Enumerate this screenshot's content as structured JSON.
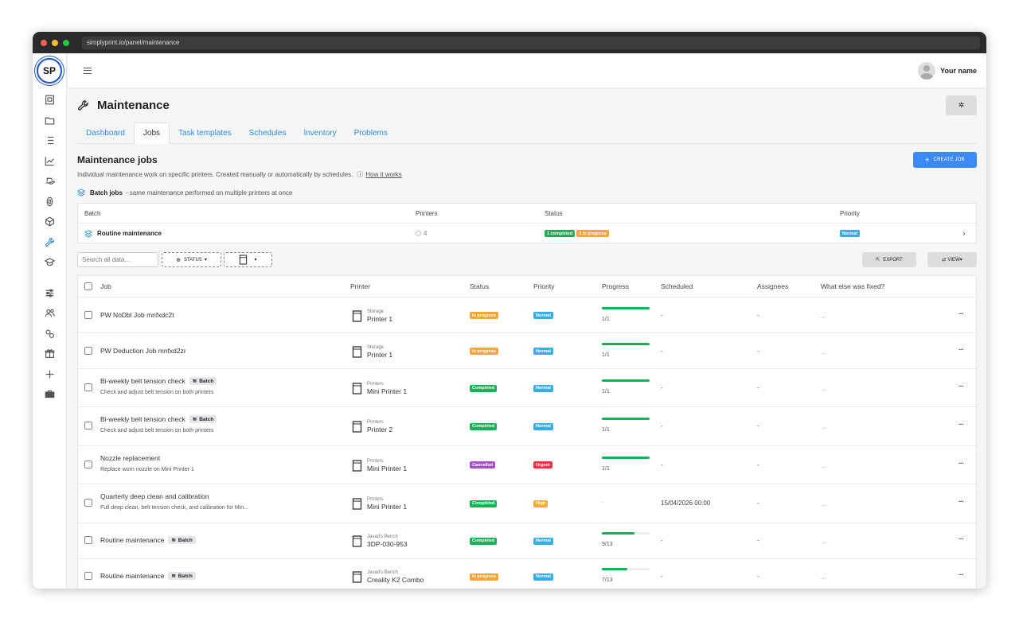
{
  "window": {
    "url": "simplyprint.io/panel/maintenance",
    "dots": [
      "#ff5f57",
      "#febc2e",
      "#28c840"
    ]
  },
  "logo": {
    "text": "SP"
  },
  "sidebar": {
    "icons": [
      "printer-farm-icon",
      "folder-icon",
      "list-icon",
      "chart-icon",
      "hand-icon",
      "spool-icon",
      "cube-icon",
      "wrench-icon",
      "graduation-icon",
      "sliders-icon",
      "users-icon",
      "gears-icon",
      "gift-icon",
      "plus-icon",
      "toolbox-icon"
    ],
    "active": "wrench-icon"
  },
  "topbar": {
    "user_name": "Your name"
  },
  "page": {
    "title": "Maintenance",
    "settings_icon": "gear-icon"
  },
  "tabs": [
    {
      "label": "Dashboard",
      "active": false
    },
    {
      "label": "Jobs",
      "active": true
    },
    {
      "label": "Task templates",
      "active": false
    },
    {
      "label": "Schedules",
      "active": false
    },
    {
      "label": "Inventory",
      "active": false
    },
    {
      "label": "Problems",
      "active": false
    }
  ],
  "section": {
    "title": "Maintenance jobs",
    "description": "Individual maintenance work on specific printers. Created manually or automatically by schedules.",
    "how_it_works": "How it works",
    "create_button": "CREATE JOB"
  },
  "batch": {
    "heading": "Batch jobs",
    "subheading": "- same maintenance performed on multiple printers at once",
    "columns": [
      "Batch",
      "Printers",
      "Status",
      "Priority"
    ],
    "row": {
      "name": "Routine maintenance",
      "printers": "4",
      "status_completed": "1 completed",
      "status_in_progress": "3 in progress",
      "priority": "Normal"
    }
  },
  "filters": {
    "search_placeholder": "Search all data...",
    "status_label": "STATUS",
    "export_label": "EXPORT",
    "view_label": "VIEW"
  },
  "jobs": {
    "columns": [
      "Job",
      "Printer",
      "Status",
      "Priority",
      "Progress",
      "Scheduled",
      "Assignees",
      "What else was fixed?"
    ],
    "rows": [
      {
        "title": "PW NoDbl Job mnfxdc2t",
        "subtitle": "",
        "batch": "",
        "printer_group": "Storage",
        "printer": "Printer 1",
        "status": "In progress",
        "priority": "Normal",
        "progress": 1.0,
        "progress_text": "1/1",
        "scheduled": "-",
        "assignees": "-",
        "fixed": "..."
      },
      {
        "title": "PW Deduction Job mnfxd2zr",
        "subtitle": "",
        "batch": "",
        "printer_group": "Storage",
        "printer": "Printer 1",
        "status": "In progress",
        "priority": "Normal",
        "progress": 1.0,
        "progress_text": "1/1",
        "scheduled": "-",
        "assignees": "-",
        "fixed": "..."
      },
      {
        "title": "Bi-weekly belt tension check",
        "subtitle": "Check and adjust belt tension on both printers",
        "batch": "Batch",
        "printer_group": "Printers",
        "printer": "Mini Printer 1",
        "status": "Completed",
        "priority": "Normal",
        "progress": 1.0,
        "progress_text": "1/1",
        "scheduled": "-",
        "assignees": "-",
        "fixed": "..."
      },
      {
        "title": "Bi-weekly belt tension check",
        "subtitle": "Check and adjust belt tension on both printers",
        "batch": "Batch",
        "printer_group": "Printers",
        "printer": "Printer 2",
        "status": "Completed",
        "priority": "Normal",
        "progress": 1.0,
        "progress_text": "1/1",
        "scheduled": "-",
        "assignees": "-",
        "fixed": "..."
      },
      {
        "title": "Nozzle replacement",
        "subtitle": "Replace worn nozzle on Mini Printer 1",
        "batch": "",
        "printer_group": "Printers",
        "printer": "Mini Printer 1",
        "status": "Cancelled",
        "priority": "Urgent",
        "progress": 1.0,
        "progress_text": "1/1",
        "scheduled": "-",
        "assignees": "-",
        "fixed": "..."
      },
      {
        "title": "Quarterly deep clean and calibration",
        "subtitle": "Full deep clean, belt tension check, and calibration for Min...",
        "batch": "",
        "printer_group": "Printers",
        "printer": "Mini Printer 1",
        "status": "Completed",
        "priority": "High",
        "progress": null,
        "progress_text": "-",
        "scheduled": "15/04/2026 00:00",
        "assignees": "-",
        "fixed": "..."
      },
      {
        "title": "Routine maintenance",
        "subtitle": "",
        "batch": "Batch",
        "printer_group": "Javad's Bench",
        "printer": "3DP-030-953",
        "status": "Completed",
        "priority": "Normal",
        "progress": 0.69,
        "progress_text": "9/13",
        "scheduled": "-",
        "assignees": "-",
        "fixed": "..."
      },
      {
        "title": "Routine maintenance",
        "subtitle": "",
        "batch": "Batch",
        "printer_group": "Javad's Bench",
        "printer": "Creality K2 Combo",
        "status": "In progress",
        "priority": "Normal",
        "progress": 0.54,
        "progress_text": "7/13",
        "scheduled": "-",
        "assignees": "-",
        "fixed": "..."
      }
    ]
  },
  "colors": {
    "accent": "#3d8af7",
    "link": "#2d8cd8",
    "completed": "#14b356",
    "in_progress": "#f3a73b",
    "normal": "#35aee3",
    "cancelled": "#a552c9",
    "urgent": "#e5344a",
    "high": "#f5a93a"
  }
}
